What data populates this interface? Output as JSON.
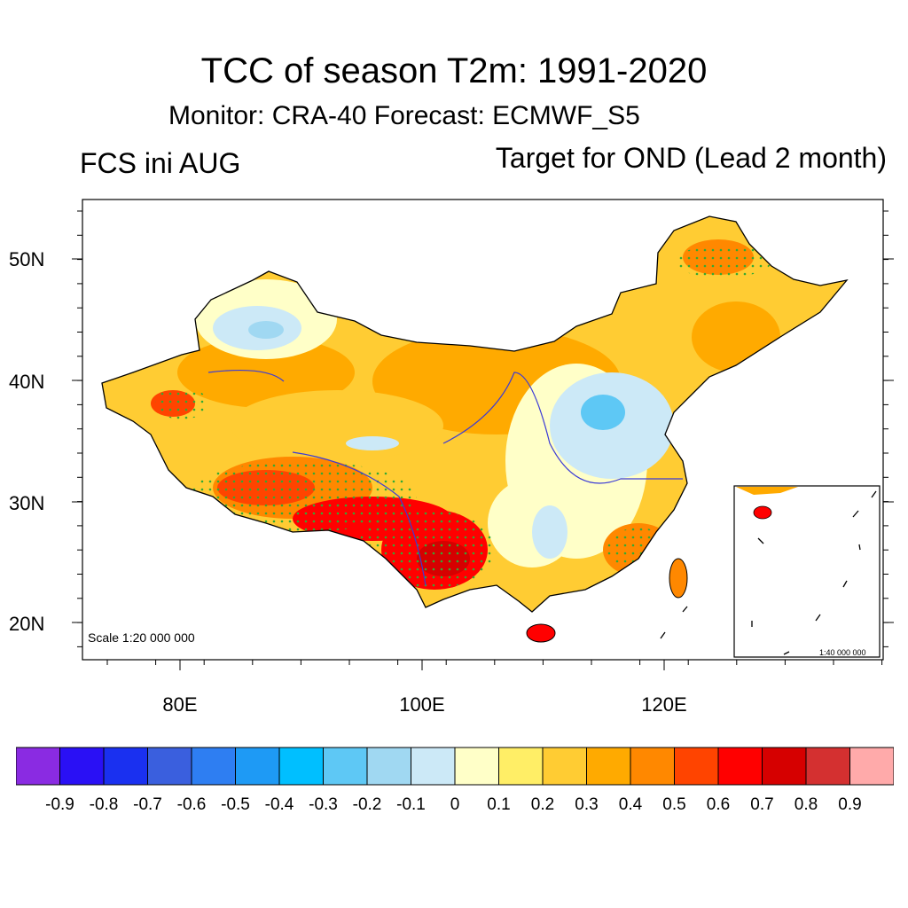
{
  "title": "TCC of season T2m: 1991-2020",
  "subtitle": "Monitor: CRA-40   Forecast: ECMWF_S5",
  "left_label": "FCS ini AUG",
  "right_label": "Target for OND (Lead 2 month)",
  "map": {
    "lat_ticks": [
      "50N",
      "40N",
      "30N",
      "20N"
    ],
    "lon_ticks": [
      "80E",
      "100E",
      "120E"
    ],
    "scale_label": "Scale 1:20 000 000",
    "inset_scale_label": "1:40 000 000"
  },
  "colorbar": {
    "colors": [
      "#8a2be2",
      "#2a10f5",
      "#1a30f0",
      "#3a5fde",
      "#2e7ef2",
      "#1e9af5",
      "#00bfff",
      "#5ec8f5",
      "#a0d8f2",
      "#cce9f7",
      "#ffffc8",
      "#ffee66",
      "#ffcc33",
      "#ffaa00",
      "#ff8800",
      "#ff4400",
      "#ff0000",
      "#d60000",
      "#d43030",
      "#ffaaaa"
    ],
    "labels": [
      "-0.9",
      "-0.8",
      "-0.7",
      "-0.6",
      "-0.5",
      "-0.4",
      "-0.3",
      "-0.2",
      "-0.1",
      "0",
      "0.1",
      "0.2",
      "0.3",
      "0.4",
      "0.5",
      "0.6",
      "0.7",
      "0.8",
      "0.9"
    ]
  }
}
